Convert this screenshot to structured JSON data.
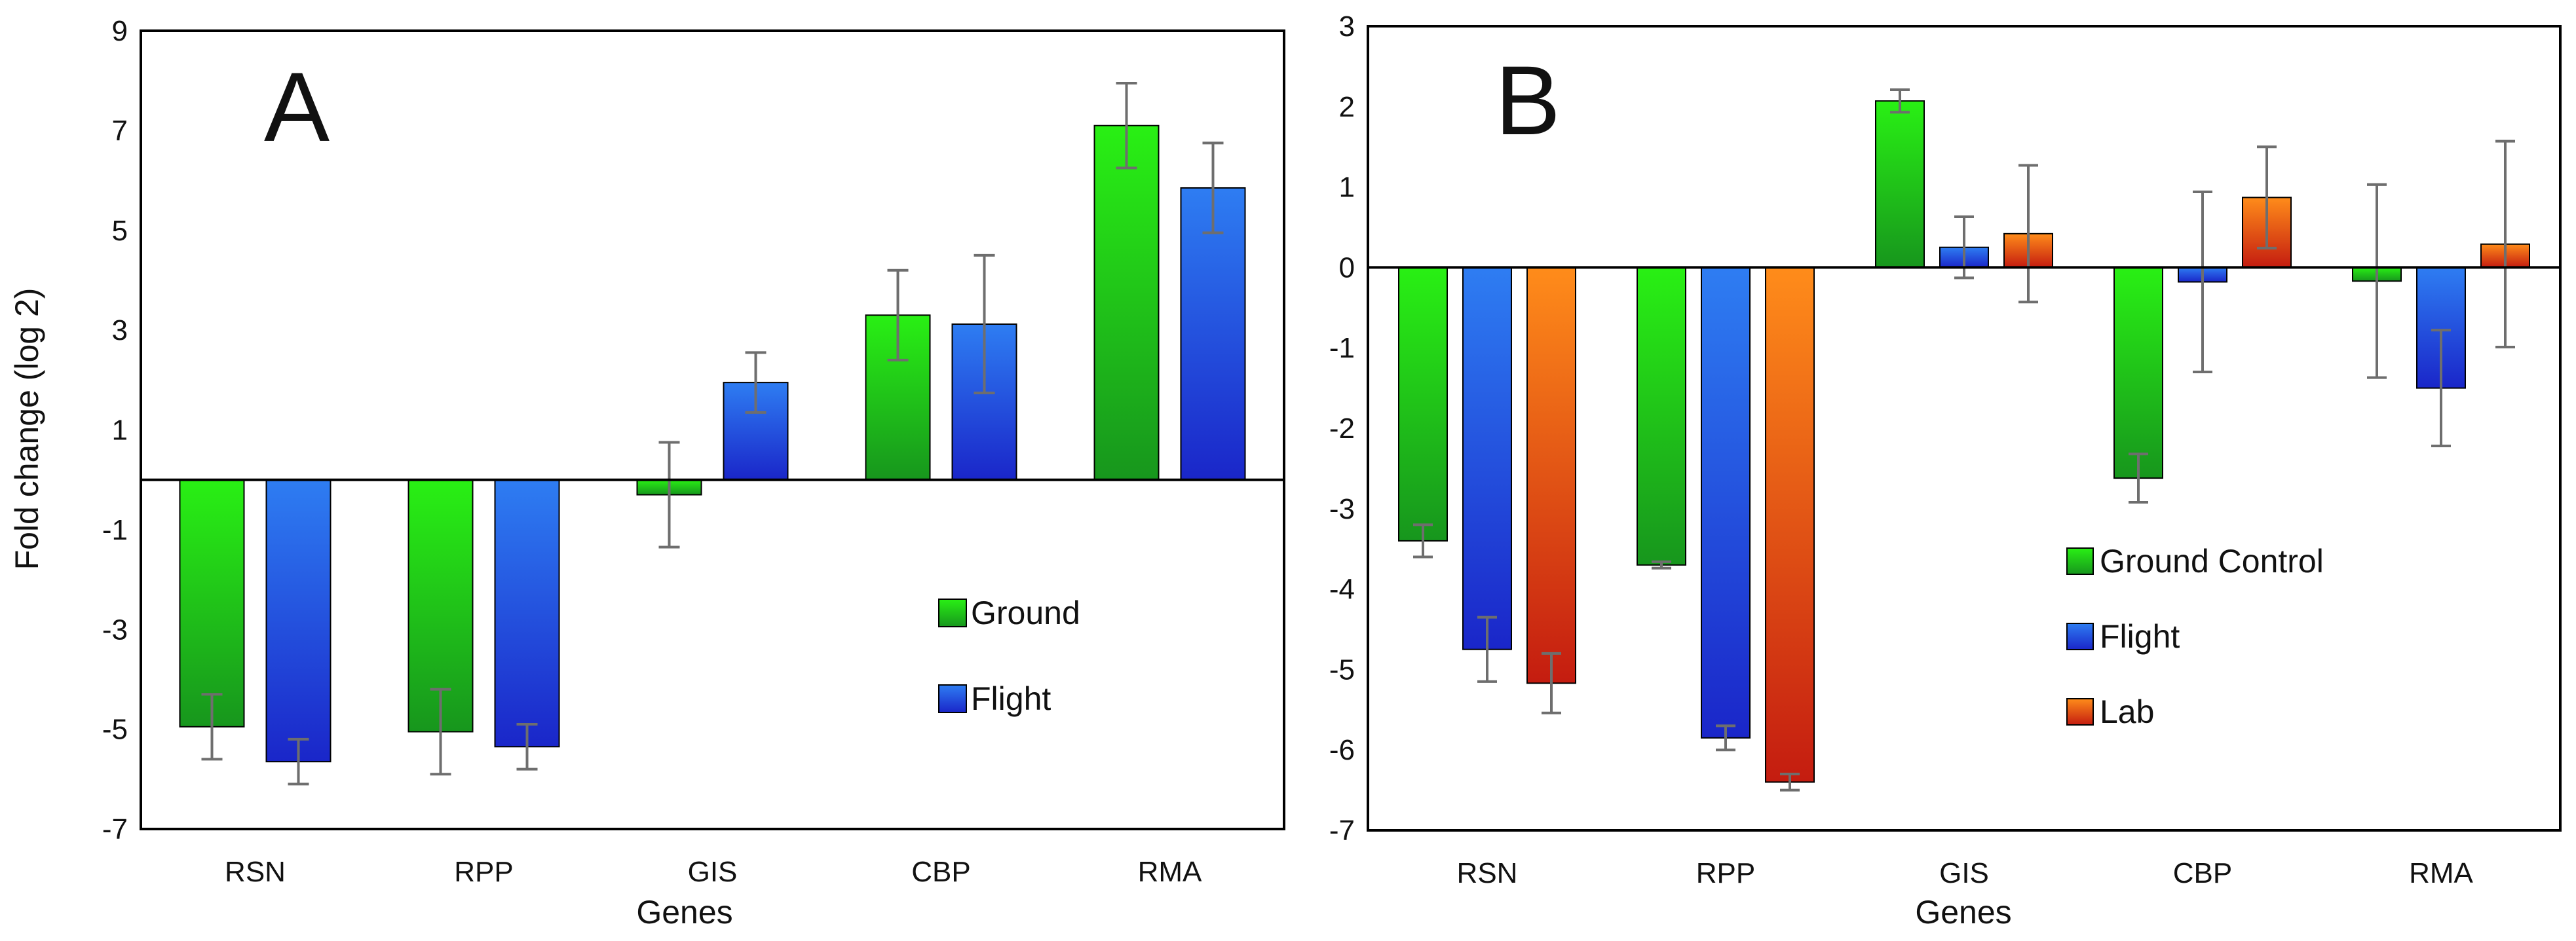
{
  "colors": {
    "green_light": "#29f014",
    "green_dark": "#17961d",
    "blue_light": "#2e7df2",
    "blue_dark": "#1a26c9",
    "orange_light": "#ff8c1a",
    "red_dark": "#c41c10",
    "error_bar": "#6e6e6e",
    "axis": "#000000"
  },
  "chart_data": [
    {
      "panel": "A",
      "type": "bar",
      "title": "",
      "xlabel": "Genes",
      "ylabel": "Fold change (log 2)",
      "ylim": [
        -7,
        9
      ],
      "yticks": [
        "9",
        "7",
        "5",
        "3",
        "1",
        "-1",
        "-3",
        "-5",
        "-7"
      ],
      "categories": [
        "RSN",
        "RPP",
        "GIS",
        "CBP",
        "RMA"
      ],
      "legend": {
        "placement": "center-right"
      },
      "series": [
        {
          "name": "Ground",
          "color_key": "green",
          "values": [
            -4.95,
            -5.05,
            -0.3,
            3.3,
            7.1
          ],
          "errors": [
            0.65,
            0.85,
            1.05,
            0.9,
            0.85
          ]
        },
        {
          "name": "Flight",
          "color_key": "blue",
          "values": [
            -5.65,
            -5.35,
            1.95,
            3.12,
            5.85
          ],
          "errors": [
            0.45,
            0.45,
            0.6,
            1.38,
            0.9
          ]
        }
      ]
    },
    {
      "panel": "B",
      "type": "bar",
      "title": "",
      "xlabel": "Genes",
      "ylabel": "",
      "ylim": [
        -7,
        3
      ],
      "yticks": [
        "3",
        "2",
        "1",
        "0",
        "-1",
        "-2",
        "-3",
        "-4",
        "-5",
        "-6",
        "-7"
      ],
      "categories": [
        "RSN",
        "RPP",
        "GIS",
        "CBP",
        "RMA"
      ],
      "legend": {
        "placement": "lower-right"
      },
      "series": [
        {
          "name": "Ground Control",
          "color_key": "green",
          "values": [
            -3.4,
            -3.7,
            2.07,
            -2.62,
            -0.17
          ],
          "errors": [
            0.2,
            0.04,
            0.14,
            0.3,
            1.2
          ]
        },
        {
          "name": "Flight",
          "color_key": "blue",
          "values": [
            -4.75,
            -5.85,
            0.25,
            -0.18,
            -1.5
          ],
          "errors": [
            0.4,
            0.15,
            0.38,
            1.12,
            0.72
          ]
        },
        {
          "name": "Lab",
          "color_key": "orange",
          "values": [
            -5.17,
            -6.4,
            0.42,
            0.87,
            0.29
          ],
          "errors": [
            0.37,
            0.1,
            0.85,
            0.63,
            1.28
          ]
        }
      ]
    }
  ]
}
